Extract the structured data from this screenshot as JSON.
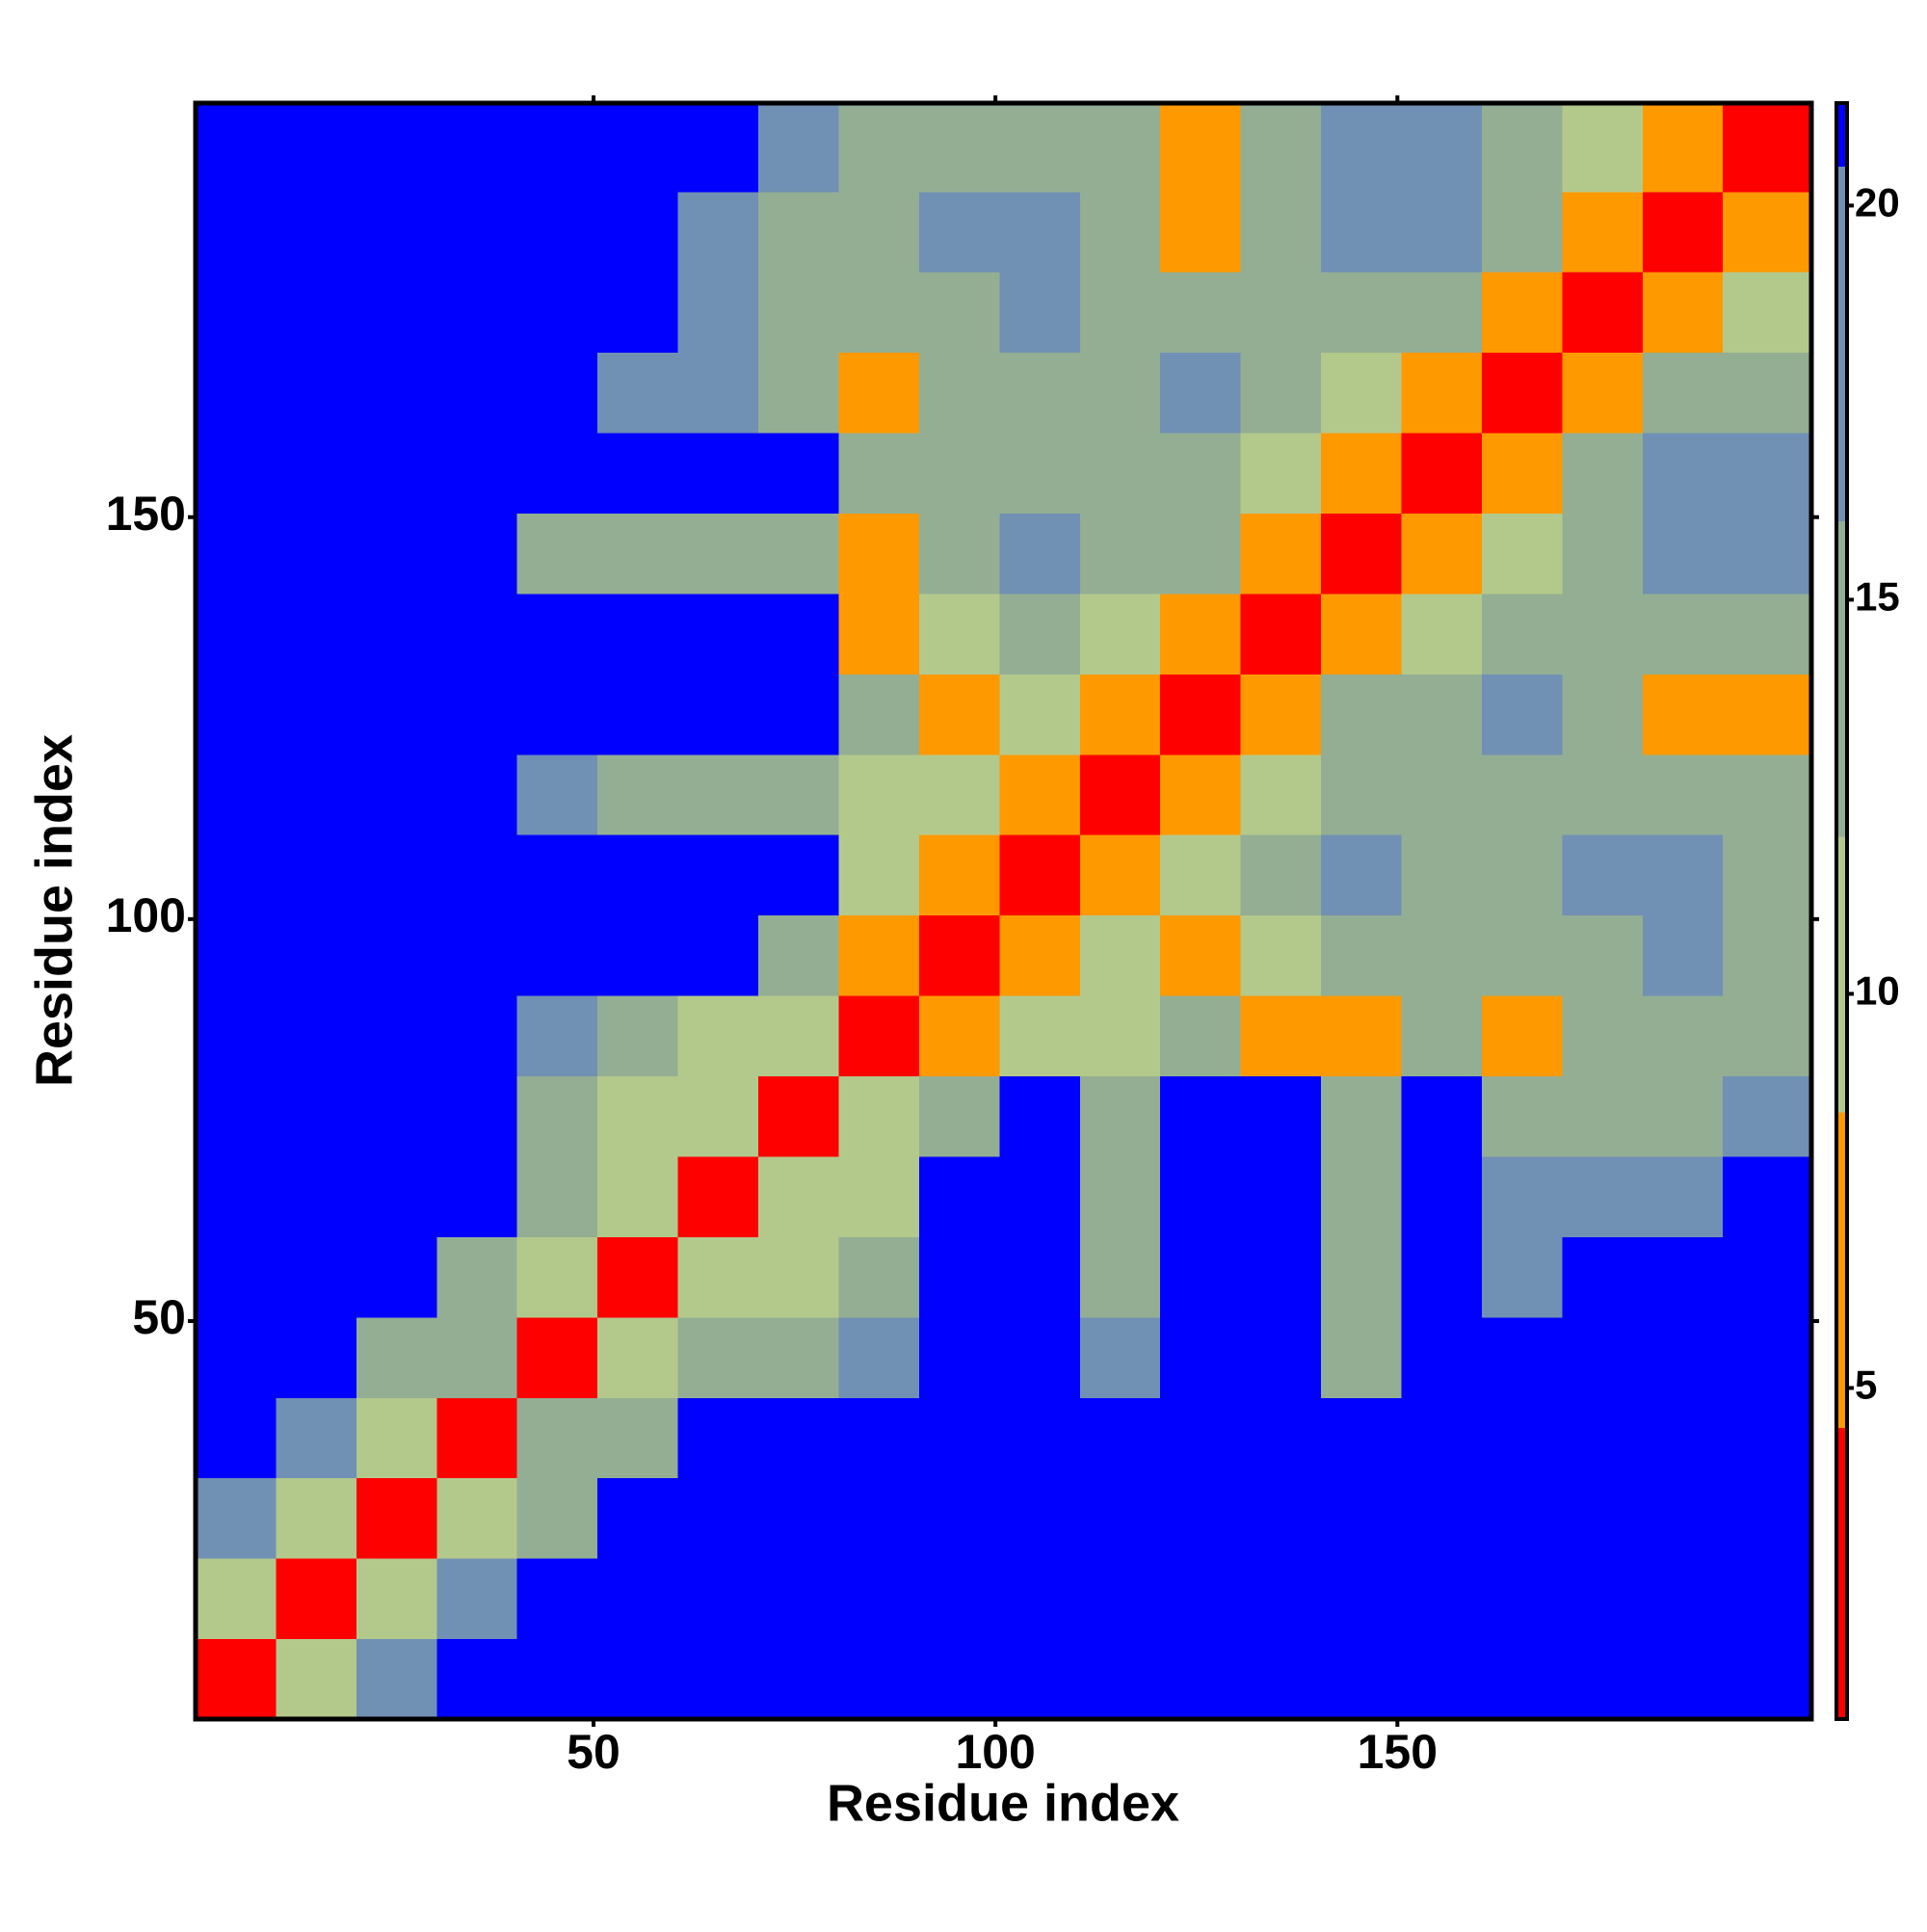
{
  "chart_data": {
    "type": "heatmap",
    "xlabel": "Residue index",
    "ylabel": "Residue index",
    "xlim": [
      0.5,
      201.5
    ],
    "ylim": [
      0.5,
      201.5
    ],
    "xticks": [
      50,
      100,
      150
    ],
    "yticks": [
      50,
      100,
      150
    ],
    "x_bins": [
      0.5,
      10.5,
      20.5,
      30.5,
      40.5,
      50.5,
      60.5,
      70.5,
      80.5,
      90.5,
      100.5,
      110.5,
      120.5,
      130.5,
      140.5,
      150.5,
      160.5,
      170.5,
      180.5,
      190.5,
      201.5
    ],
    "y_bins": [
      0.5,
      10.5,
      20.5,
      30.5,
      40.5,
      50.5,
      60.5,
      70.5,
      80.5,
      90.5,
      100.5,
      110.5,
      120.5,
      130.5,
      140.5,
      150.5,
      160.5,
      170.5,
      180.5,
      190.5,
      201.5
    ],
    "values": [
      [
        2,
        12,
        18,
        21,
        21,
        21,
        21,
        21,
        21,
        21,
        21,
        21,
        21,
        21,
        21,
        21,
        21,
        21,
        21,
        21
      ],
      [
        12,
        2,
        12,
        18,
        21,
        21,
        21,
        21,
        21,
        21,
        21,
        21,
        21,
        21,
        21,
        21,
        21,
        21,
        21,
        21
      ],
      [
        18,
        12,
        2,
        12,
        16,
        21,
        21,
        21,
        21,
        21,
        21,
        21,
        21,
        21,
        21,
        21,
        21,
        21,
        21,
        21
      ],
      [
        21,
        18,
        12,
        2,
        14,
        15,
        21,
        21,
        21,
        21,
        21,
        21,
        21,
        21,
        21,
        21,
        21,
        21,
        21,
        21
      ],
      [
        21,
        21,
        16,
        14,
        2,
        10,
        13,
        16,
        17,
        21,
        21,
        18,
        21,
        21,
        16,
        21,
        21,
        21,
        21,
        21
      ],
      [
        21,
        21,
        21,
        15,
        10,
        2,
        9,
        12,
        15,
        21,
        21,
        16,
        21,
        21,
        15,
        21,
        18,
        21,
        21,
        21
      ],
      [
        21,
        21,
        21,
        21,
        13,
        9,
        2,
        9,
        12,
        21,
        21,
        15,
        21,
        21,
        15,
        21,
        17,
        17,
        18,
        21
      ],
      [
        21,
        21,
        21,
        21,
        16,
        12,
        9,
        2,
        9,
        13,
        21,
        14,
        21,
        21,
        14,
        21,
        15,
        14,
        16,
        18
      ],
      [
        21,
        21,
        21,
        21,
        17,
        15,
        12,
        9,
        2,
        8,
        12,
        12,
        13,
        7,
        8,
        13,
        8,
        13,
        14,
        16
      ],
      [
        21,
        21,
        21,
        21,
        21,
        21,
        21,
        13,
        8,
        2,
        7,
        11,
        8,
        12,
        14,
        15,
        13,
        15,
        17,
        16
      ],
      [
        21,
        21,
        21,
        21,
        21,
        21,
        21,
        21,
        12,
        7,
        2,
        7,
        12,
        15,
        17,
        13,
        14,
        17,
        18,
        16
      ],
      [
        21,
        21,
        21,
        21,
        18,
        16,
        15,
        14,
        12,
        11,
        7,
        2,
        7,
        12,
        13,
        15,
        14,
        16,
        14,
        15
      ],
      [
        21,
        21,
        21,
        21,
        21,
        21,
        21,
        21,
        13,
        8,
        12,
        7,
        2,
        6,
        13,
        15,
        17,
        15,
        8,
        7
      ],
      [
        21,
        21,
        21,
        21,
        21,
        21,
        21,
        21,
        7,
        12,
        15,
        12,
        6,
        2,
        7,
        12,
        14,
        15,
        16,
        14
      ],
      [
        21,
        21,
        21,
        21,
        16,
        15,
        15,
        14,
        8,
        14,
        17,
        13,
        13,
        7,
        2,
        7,
        12,
        16,
        20,
        17
      ],
      [
        21,
        21,
        21,
        21,
        21,
        21,
        21,
        21,
        13,
        15,
        13,
        15,
        15,
        12,
        7,
        2,
        8,
        13,
        17,
        18
      ],
      [
        21,
        21,
        21,
        21,
        21,
        18,
        17,
        15,
        8,
        13,
        14,
        14,
        17,
        14,
        12,
        8,
        2,
        8,
        13,
        15
      ],
      [
        21,
        21,
        21,
        21,
        21,
        21,
        17,
        14,
        13,
        15,
        17,
        16,
        15,
        15,
        16,
        13,
        8,
        2,
        8,
        12
      ],
      [
        21,
        21,
        21,
        21,
        21,
        21,
        18,
        16,
        14,
        17,
        18,
        14,
        8,
        16,
        20,
        17,
        13,
        8,
        2,
        8
      ],
      [
        21,
        21,
        21,
        21,
        21,
        21,
        21,
        18,
        16,
        16,
        16,
        15,
        7,
        14,
        17,
        18,
        15,
        12,
        8,
        2
      ]
    ],
    "colorbar": {
      "lim": [
        0.8,
        21.3
      ],
      "ticks": [
        5,
        10,
        15,
        20
      ],
      "levels": [
        0.8,
        4.5,
        8.5,
        12,
        16,
        20.5,
        21.3
      ],
      "colors": [
        "#ff0000",
        "#ff9900",
        "#b3c98c",
        "#93ae93",
        "#7090b4",
        "#0000ff"
      ]
    }
  }
}
